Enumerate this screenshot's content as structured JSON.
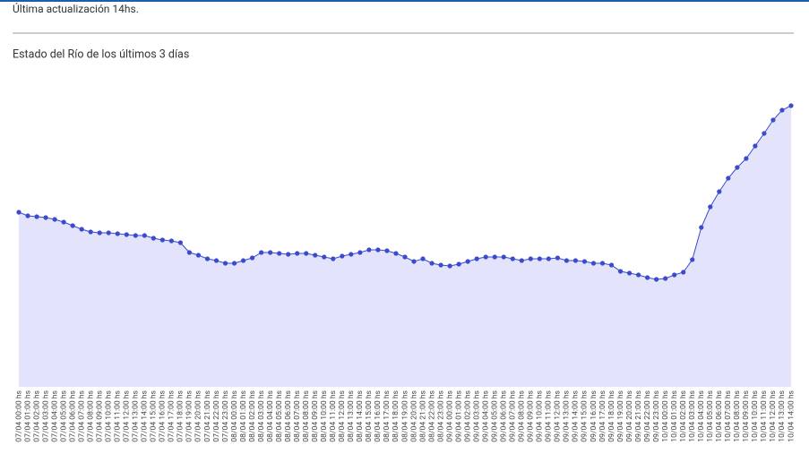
{
  "header": {
    "updated": "Última actualización 14hs."
  },
  "chart_data": {
    "type": "area",
    "title": "Estado del Río de los últimos 3 días",
    "color": "#3a4bcc",
    "fill": "#e3e3fb",
    "ylim": [
      0,
      347
    ],
    "categories": [
      "07/04 00:00 hs",
      "07/04 01:00 hs",
      "07/04 02:00 hs",
      "07/04 03:00 hs",
      "07/04 04:00 hs",
      "07/04 05:00 hs",
      "07/04 06:00 hs",
      "07/04 07:00 hs",
      "07/04 08:00 hs",
      "07/04 09:00 hs",
      "07/04 10:00 hs",
      "07/04 11:00 hs",
      "07/04 12:00 hs",
      "07/04 13:00 hs",
      "07/04 14:00 hs",
      "07/04 15:00 hs",
      "07/04 16:00 hs",
      "07/04 17:00 hs",
      "07/04 18:00 hs",
      "07/04 19:00 hs",
      "07/04 20:00 hs",
      "07/04 21:00 hs",
      "07/04 22:00 hs",
      "07/04 23:00 hs",
      "08/04 00:00 hs",
      "08/04 01:00 hs",
      "08/04 02:00 hs",
      "08/04 03:00 hs",
      "08/04 04:00 hs",
      "08/04 05:00 hs",
      "08/04 06:00 hs",
      "08/04 07:00 hs",
      "08/04 08:00 hs",
      "08/04 09:00 hs",
      "08/04 10:00 hs",
      "08/04 11:00 hs",
      "08/04 12:00 hs",
      "08/04 13:00 hs",
      "08/04 14:00 hs",
      "08/04 15:00 hs",
      "08/04 16:00 hs",
      "08/04 17:00 hs",
      "08/04 18:00 hs",
      "08/04 19:00 hs",
      "08/04 20:00 hs",
      "08/04 21:00 hs",
      "08/04 22:00 hs",
      "08/04 23:00 hs",
      "09/04 00:00 hs",
      "09/04 01:00 hs",
      "09/04 02:00 hs",
      "09/04 03:00 hs",
      "09/04 04:00 hs",
      "09/04 05:00 hs",
      "09/04 06:00 hs",
      "09/04 07:00 hs",
      "09/04 08:00 hs",
      "09/04 09:00 hs",
      "09/04 10:00 hs",
      "09/04 11:00 hs",
      "09/04 12:00 hs",
      "09/04 13:00 hs",
      "09/04 14:00 hs",
      "09/04 15:00 hs",
      "09/04 16:00 hs",
      "09/04 17:00 hs",
      "09/04 18:00 hs",
      "09/04 19:00 hs",
      "09/04 20:00 hs",
      "09/04 21:00 hs",
      "09/04 22:00 hs",
      "09/04 23:00 hs",
      "10/04 00:00 hs",
      "10/04 01:00 hs",
      "10/04 02:00 hs",
      "10/04 03:00 hs",
      "10/04 04:00 hs",
      "10/04 05:00 hs",
      "10/04 06:00 hs",
      "10/04 07:00 hs",
      "10/04 08:00 hs",
      "10/04 09:00 hs",
      "10/04 10:00 hs",
      "10/04 11:00 hs",
      "10/04 12:00 hs",
      "10/04 13:00 hs",
      "10/04 14:00 hs"
    ],
    "values": [
      195,
      191,
      190,
      189,
      187,
      184,
      180,
      176,
      173,
      172,
      172,
      171,
      170,
      169,
      169,
      166,
      164,
      163,
      161,
      150,
      147,
      143,
      141,
      138,
      138,
      141,
      144,
      150,
      150,
      149,
      148,
      149,
      149,
      147,
      145,
      143,
      146,
      148,
      150,
      153,
      153,
      152,
      149,
      145,
      140,
      143,
      138,
      136,
      135,
      137,
      140,
      143,
      145,
      145,
      145,
      143,
      141,
      143,
      143,
      143,
      144,
      141,
      141,
      140,
      138,
      138,
      136,
      129,
      127,
      125,
      122,
      120,
      121,
      125,
      128,
      142,
      178,
      201,
      218,
      233,
      245,
      255,
      269,
      283,
      298,
      309,
      314
    ]
  }
}
